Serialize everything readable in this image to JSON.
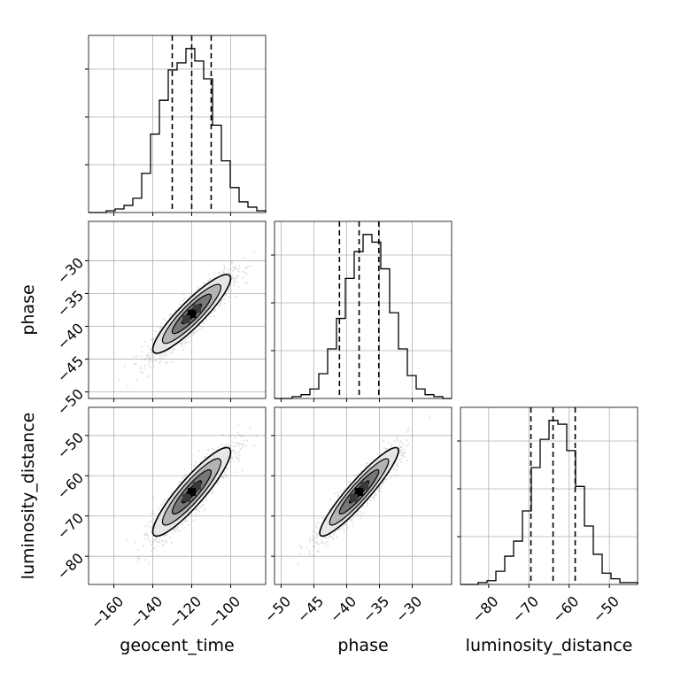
{
  "chart_data": {
    "type": "corner",
    "parameters": [
      "geocent_time",
      "phase",
      "luminosity_distance"
    ],
    "axes": {
      "geocent_time": {
        "label": "geocent_time",
        "range": [
          -173,
          -82
        ],
        "ticks": [
          -160,
          -140,
          -120,
          -100
        ],
        "tick_labels": [
          "−160",
          "−140",
          "−120",
          "−100"
        ]
      },
      "phase": {
        "label": "phase",
        "range": [
          -51,
          -24
        ],
        "ticks": [
          -50,
          -45,
          -40,
          -35,
          -30
        ],
        "tick_labels": [
          "−50",
          "−45",
          "−40",
          "−35",
          "−30"
        ]
      },
      "luminosity_distance": {
        "label": "luminosity_distance",
        "range": [
          -87,
          -43
        ],
        "ticks": [
          -80,
          -70,
          -60,
          -50
        ],
        "tick_labels": [
          "−80",
          "−70",
          "−60",
          "−50"
        ]
      }
    },
    "histograms": [
      {
        "parameter": "geocent_time",
        "bin_edges": [
          -173,
          -168.45,
          -163.9,
          -159.35,
          -154.8,
          -150.25,
          -145.7,
          -141.15,
          -136.6,
          -132.05,
          -127.5,
          -122.95,
          -118.4,
          -113.85,
          -109.3,
          -104.75,
          -100.2,
          -95.65,
          -91.1,
          -86.55,
          -82
        ],
        "counts": [
          0,
          0,
          1,
          2,
          4,
          8,
          22,
          44,
          63,
          80,
          84,
          92,
          85,
          75,
          49,
          29,
          14,
          6,
          3,
          1
        ],
        "quantiles": [
          -130,
          -120,
          -110
        ]
      },
      {
        "parameter": "phase",
        "bin_edges": [
          -51,
          -49.65,
          -48.3,
          -46.95,
          -45.6,
          -44.25,
          -42.9,
          -41.55,
          -40.2,
          -38.85,
          -37.5,
          -36.15,
          -34.8,
          -33.45,
          -32.1,
          -30.75,
          -29.4,
          -28.05,
          -26.7,
          -25.35,
          -24
        ],
        "counts": [
          0,
          0,
          1,
          2,
          5,
          13,
          26,
          42,
          63,
          77,
          86,
          82,
          68,
          45,
          26,
          12,
          5,
          2,
          1,
          0
        ],
        "quantiles": [
          -41.1,
          -38.1,
          -35.1
        ]
      },
      {
        "parameter": "luminosity_distance",
        "bin_edges": [
          -87,
          -84.8,
          -82.6,
          -80.4,
          -78.2,
          -76,
          -73.8,
          -71.6,
          -69.4,
          -67.2,
          -65,
          -62.8,
          -60.6,
          -58.4,
          -56.2,
          -54,
          -51.8,
          -49.6,
          -47.4,
          -45.2,
          -43
        ],
        "counts": [
          0,
          0,
          1,
          2,
          7,
          15,
          23,
          39,
          62,
          77,
          87,
          85,
          71,
          52,
          31,
          16,
          6,
          3,
          1,
          1
        ],
        "quantiles": [
          -69.5,
          -64,
          -58.5
        ]
      }
    ],
    "scatter_panels": [
      {
        "x": "geocent_time",
        "y": "phase",
        "mean": [
          -120,
          -38.1
        ],
        "std": [
          10,
          3
        ],
        "correlation": 0.9,
        "peak": [
          -120,
          -38.1
        ]
      },
      {
        "x": "geocent_time",
        "y": "luminosity_distance",
        "mean": [
          -120,
          -64
        ],
        "std": [
          10,
          5.5
        ],
        "correlation": 0.9,
        "peak": [
          -120,
          -64
        ]
      },
      {
        "x": "phase",
        "y": "luminosity_distance",
        "mean": [
          -38.1,
          -64
        ],
        "std": [
          3,
          5.5
        ],
        "correlation": 0.93,
        "peak": [
          -38.1,
          -64
        ]
      }
    ],
    "grid": true,
    "colors": {
      "line": "#000000",
      "points": "#999999",
      "grid": "#b0b0b0",
      "contour_fill_levels": [
        "#ffffff",
        "#e6e6e6",
        "#b3b3b3",
        "#777777",
        "#3a3a3a",
        "#000000"
      ]
    }
  }
}
